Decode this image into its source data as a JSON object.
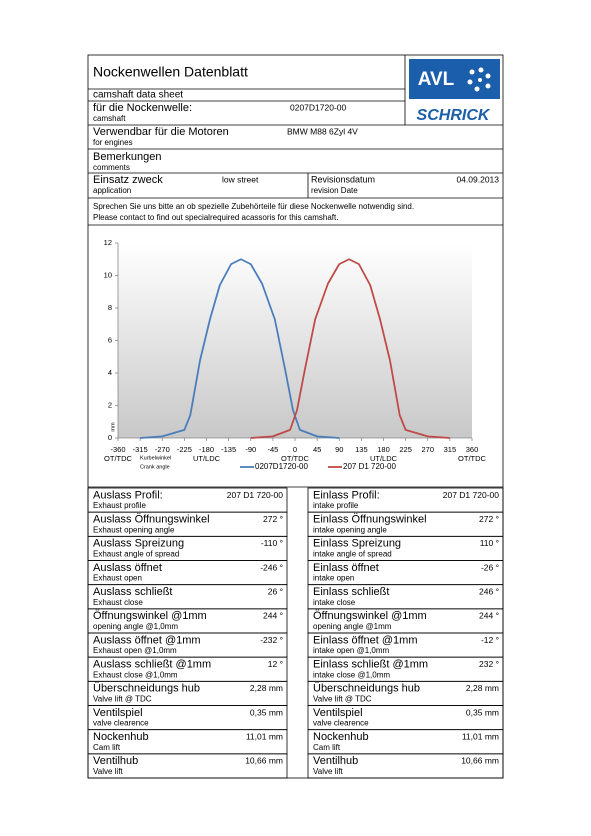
{
  "header": {
    "title": "Nockenwellen Datenblatt",
    "subtitle": "camshaft data sheet",
    "logo": {
      "top": "AVL",
      "bottom": "SCHRICK"
    }
  },
  "fields": [
    {
      "label": "für die Nockenwelle:",
      "sub": "camshaft",
      "value": "0207D1720-00"
    },
    {
      "label": "Verwendbar für die Motoren",
      "sub": "for engines",
      "value": "BMW M88 6Zyl 4V"
    },
    {
      "label": "Bemerkungen",
      "sub": "comments"
    }
  ],
  "application_row": {
    "label": "Einsatz zweck",
    "sub": "application",
    "value": "low street",
    "date_label": "Revisionsdatum",
    "date_sub": "revision Date",
    "date": "04.09.2013"
  },
  "note": [
    "Sprechen Sie uns bitte an ob spezielle  Zubehörteile für diese Nockenwelle notwendig sind.",
    "Please contact to find out specialrequired acassoris for this camshaft."
  ],
  "chart_data": {
    "type": "line",
    "x_label": [
      "Kurbelwinkel",
      "Crank angle"
    ],
    "y_label": "mm",
    "xlim": [
      -360,
      360
    ],
    "xticks": [
      -360,
      -315,
      -270,
      -225,
      -180,
      -135,
      -90,
      -45,
      0,
      45,
      90,
      135,
      180,
      225,
      270,
      315,
      360
    ],
    "x_annotations": [
      {
        "value": -360,
        "label": "OT/TDC"
      },
      {
        "value": -180,
        "label": "UT/LDC"
      },
      {
        "value": 0,
        "label": "OT/TDC"
      },
      {
        "value": 180,
        "label": "UT/LDC"
      },
      {
        "value": 360,
        "label": "OT/TDC"
      }
    ],
    "ylim": [
      0,
      12
    ],
    "yticks": [
      0,
      2,
      4,
      6,
      8,
      10,
      12
    ],
    "grid": false,
    "series": [
      {
        "name": "0207D1720-00",
        "color": "#4a7ebb",
        "x": [
          -315,
          -270,
          -225,
          -213,
          -193,
          -173,
          -153,
          -130,
          -110,
          -90,
          -67,
          -41,
          -20,
          -4,
          10,
          45,
          90
        ],
        "values": [
          0,
          0.1,
          0.5,
          1.4,
          4.8,
          7.3,
          9.4,
          10.7,
          11,
          10.7,
          9.5,
          7.3,
          4.2,
          1.7,
          0.5,
          0.1,
          0
        ]
      },
      {
        "name": "207 D1 720-00",
        "color": "#be4b48",
        "x": [
          -90,
          -45,
          -10,
          4,
          20,
          41,
          67,
          90,
          110,
          130,
          153,
          173,
          193,
          213,
          225,
          270,
          315
        ],
        "values": [
          0,
          0.1,
          0.5,
          1.7,
          4.2,
          7.3,
          9.5,
          10.7,
          11,
          10.7,
          9.4,
          7.3,
          4.8,
          1.4,
          0.5,
          0.1,
          0
        ]
      }
    ]
  },
  "table": {
    "rows": [
      [
        {
          "label": "Auslass Profil:",
          "sub": "Exhaust profile",
          "value": "207 D1 720-00"
        },
        {
          "label": "Einlass Profil:",
          "sub": "intake profile",
          "value": "207 D1 720-00"
        }
      ],
      [
        {
          "label": "Auslass Öffnungswinkel",
          "sub": "Exhaust opening angle",
          "value": "272 °"
        },
        {
          "label": "Einlass Öffnungswinkel",
          "sub": "intake opening angle",
          "value": "272 °"
        }
      ],
      [
        {
          "label": "Auslass Spreizung",
          "sub": "Exhaust angle of spread",
          "value": "-110 °"
        },
        {
          "label": "Einlass Spreizung",
          "sub": "intake angle of spread",
          "value": "110 °"
        }
      ],
      [
        {
          "label": "Auslass öffnet",
          "sub": "Exhaust open",
          "value": "-246 °"
        },
        {
          "label": "Einlass öffnet",
          "sub": "intake open",
          "value": "-26 °"
        }
      ],
      [
        {
          "label": "Auslass schließt",
          "sub": "Exhaust close",
          "value": "26 °"
        },
        {
          "label": "Einlass schließt",
          "sub": "intake close",
          "value": "246 °"
        }
      ],
      [
        {
          "label": "Öffnungswinkel @1mm",
          "sub": "opening angle @1,0mm",
          "value": "244 °"
        },
        {
          "label": "Öffnungswinkel @1mm",
          "sub": "opening angle @1mm",
          "value": "244 °"
        }
      ],
      [
        {
          "label": "Auslass öffnet @1mm",
          "sub": "Exhaust open @1,0mm",
          "value": "-232 °"
        },
        {
          "label": "Einlass öffnet @1mm",
          "sub": "intake open @1,0mm",
          "value": "-12 °"
        }
      ],
      [
        {
          "label": "Auslass schließt @1mm",
          "sub": "Exhaust close @1,0mm",
          "value": "12 °"
        },
        {
          "label": "Einlass schließt @1mm",
          "sub": "intake close @1,0mm",
          "value": "232 °"
        }
      ],
      [
        {
          "label": "Überschneidungs hub",
          "sub": "Valve lift @ TDC",
          "value": "2,28 mm"
        },
        {
          "label": "Überschneidungs hub",
          "sub": "Valve lift @ TDC",
          "value": "2,28 mm"
        }
      ],
      [
        {
          "label": "Ventilspiel",
          "sub": "valve clearence",
          "value": "0,35 mm"
        },
        {
          "label": "Ventilspiel",
          "sub": "valve clearence",
          "value": "0,35 mm"
        }
      ],
      [
        {
          "label": "Nockenhub",
          "sub": "Cam lift",
          "value": "11,01 mm"
        },
        {
          "label": "Nockenhub",
          "sub": "Cam lift",
          "value": "11,01 mm"
        }
      ],
      [
        {
          "label": "Ventilhub",
          "sub": "Valve lift",
          "value": "10,66 mm"
        },
        {
          "label": "Ventilhub",
          "sub": "Valve lift",
          "value": "10,66 mm"
        }
      ]
    ]
  }
}
